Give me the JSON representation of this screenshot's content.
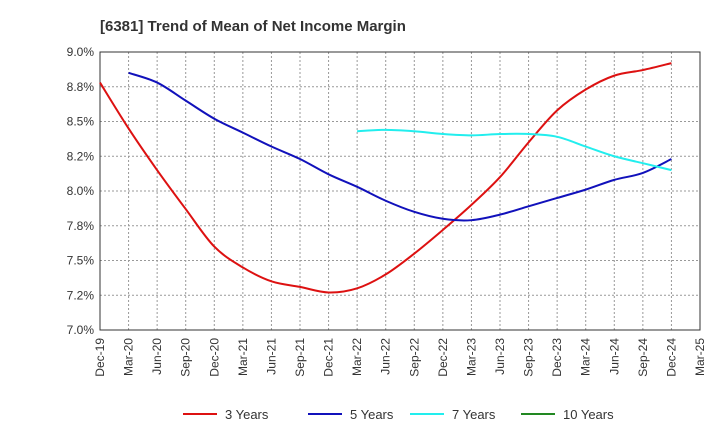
{
  "chart_data": {
    "type": "line",
    "title": "[6381]  Trend of Mean of Net Income Margin",
    "xlabel": "",
    "ylabel": "",
    "ylim": [
      7.0,
      9.0
    ],
    "y_ticks": [
      "9.0%",
      "8.8%",
      "8.5%",
      "8.2%",
      "8.0%",
      "7.8%",
      "7.5%",
      "7.2%",
      "7.0%"
    ],
    "y_tick_values": [
      9.0,
      8.75,
      8.5,
      8.25,
      8.0,
      7.75,
      7.5,
      7.25,
      7.0
    ],
    "x_ticks": [
      "Dec-19",
      "Mar-20",
      "Jun-20",
      "Sep-20",
      "Dec-20",
      "Mar-21",
      "Jun-21",
      "Sep-21",
      "Dec-21",
      "Mar-22",
      "Jun-22",
      "Sep-22",
      "Dec-22",
      "Mar-23",
      "Jun-23",
      "Sep-23",
      "Dec-23",
      "Mar-24",
      "Jun-24",
      "Sep-24",
      "Dec-24",
      "Mar-25"
    ],
    "grid": true,
    "legend_position": "bottom",
    "series": [
      {
        "name": "3 Years",
        "color": "#dd1111",
        "points": [
          [
            "Dec-19",
            8.78
          ],
          [
            "Mar-20",
            8.45
          ],
          [
            "Jun-20",
            8.15
          ],
          [
            "Sep-20",
            7.87
          ],
          [
            "Dec-20",
            7.6
          ],
          [
            "Mar-21",
            7.45
          ],
          [
            "Jun-21",
            7.35
          ],
          [
            "Sep-21",
            7.31
          ],
          [
            "Dec-21",
            7.27
          ],
          [
            "Mar-22",
            7.3
          ],
          [
            "Jun-22",
            7.4
          ],
          [
            "Sep-22",
            7.55
          ],
          [
            "Dec-22",
            7.72
          ],
          [
            "Mar-23",
            7.9
          ],
          [
            "Jun-23",
            8.1
          ],
          [
            "Sep-23",
            8.35
          ],
          [
            "Dec-23",
            8.58
          ],
          [
            "Mar-24",
            8.73
          ],
          [
            "Jun-24",
            8.83
          ],
          [
            "Sep-24",
            8.87
          ],
          [
            "Dec-24",
            8.92
          ]
        ]
      },
      {
        "name": "5 Years",
        "color": "#1111bb",
        "points": [
          [
            "Mar-20",
            8.85
          ],
          [
            "Jun-20",
            8.78
          ],
          [
            "Sep-20",
            8.65
          ],
          [
            "Dec-20",
            8.52
          ],
          [
            "Mar-21",
            8.42
          ],
          [
            "Jun-21",
            8.32
          ],
          [
            "Sep-21",
            8.23
          ],
          [
            "Dec-21",
            8.12
          ],
          [
            "Mar-22",
            8.03
          ],
          [
            "Jun-22",
            7.93
          ],
          [
            "Sep-22",
            7.85
          ],
          [
            "Dec-22",
            7.8
          ],
          [
            "Mar-23",
            7.79
          ],
          [
            "Jun-23",
            7.83
          ],
          [
            "Sep-23",
            7.89
          ],
          [
            "Dec-23",
            7.95
          ],
          [
            "Mar-24",
            8.01
          ],
          [
            "Jun-24",
            8.08
          ],
          [
            "Sep-24",
            8.13
          ],
          [
            "Dec-24",
            8.23
          ]
        ]
      },
      {
        "name": "7 Years",
        "color": "#22eeee",
        "points": [
          [
            "Mar-22",
            8.43
          ],
          [
            "Jun-22",
            8.44
          ],
          [
            "Sep-22",
            8.43
          ],
          [
            "Dec-22",
            8.41
          ],
          [
            "Mar-23",
            8.4
          ],
          [
            "Jun-23",
            8.41
          ],
          [
            "Sep-23",
            8.41
          ],
          [
            "Dec-23",
            8.39
          ],
          [
            "Mar-24",
            8.32
          ],
          [
            "Jun-24",
            8.25
          ],
          [
            "Sep-24",
            8.2
          ],
          [
            "Dec-24",
            8.15
          ]
        ]
      },
      {
        "name": "10 Years",
        "color": "#228822",
        "points": []
      }
    ]
  }
}
